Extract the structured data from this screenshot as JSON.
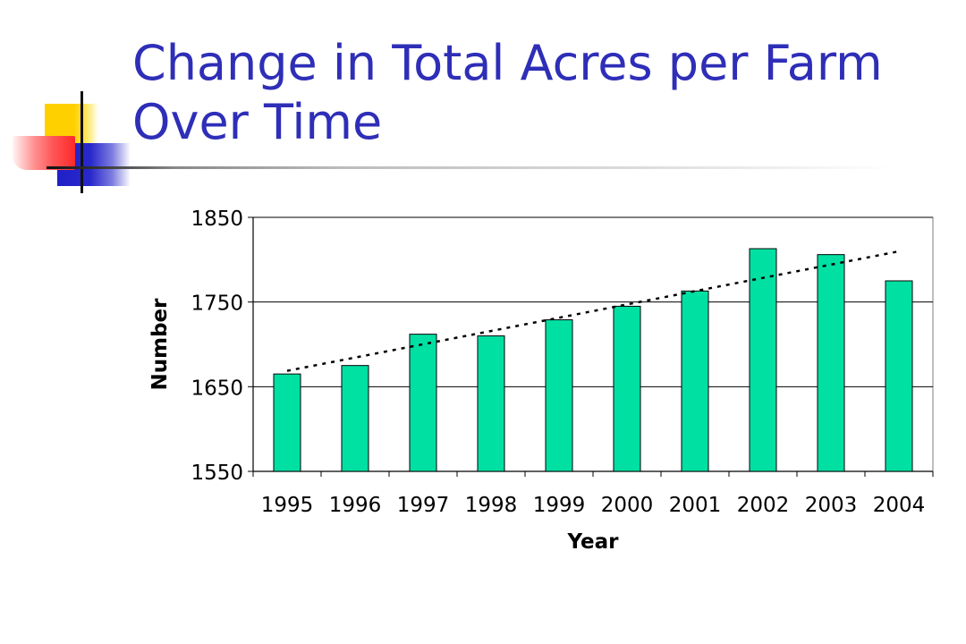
{
  "slide": {
    "title": "Change in Total Acres per Farm Over Time"
  },
  "chart_data": {
    "type": "bar",
    "categories": [
      "1995",
      "1996",
      "1997",
      "1998",
      "1999",
      "2000",
      "2001",
      "2002",
      "2003",
      "2004"
    ],
    "values": [
      1665,
      1675,
      1712,
      1710,
      1729,
      1745,
      1763,
      1813,
      1806,
      1775
    ],
    "xlabel": "Year",
    "ylabel": "Number",
    "ylim": [
      1550,
      1850
    ],
    "yticks": [
      1550,
      1650,
      1750,
      1850
    ],
    "trendline": {
      "style": "dotted",
      "type": "linear"
    },
    "grid": "horizontal",
    "legend": "none",
    "colors": {
      "bar": "#00e0a3",
      "bar_border": "#000000",
      "title": "#2e2eb8"
    }
  }
}
